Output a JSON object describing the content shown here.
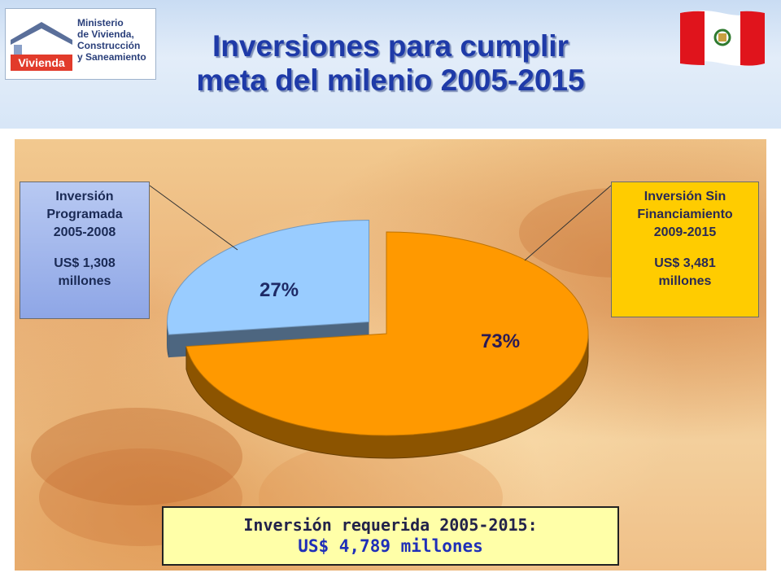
{
  "header": {
    "logo": {
      "wordmark": "Vivienda",
      "lines": [
        "Ministerio",
        "de Vivienda,",
        "Construcción",
        "y Saneamiento"
      ]
    },
    "title_lines": [
      "Inversiones para cumplir",
      "meta del milenio 2005-2015"
    ],
    "flag_icon": "peru-flag-icon"
  },
  "colors": {
    "title": "#1e3aa8",
    "slice_programada": "#99ccff",
    "slice_sin_financiamiento": "#ff9900",
    "callout_left": "#8ea6e6",
    "callout_right": "#ffcc00",
    "total_box": "#ffffa8"
  },
  "callouts": {
    "left": [
      "Inversión",
      "Programada",
      "2005-2008",
      "",
      "US$ 1,308",
      "millones"
    ],
    "right": [
      "Inversión Sin",
      "Financiamiento",
      "2009-2015",
      "",
      "US$ 3,481",
      "millones"
    ]
  },
  "chart_data": {
    "type": "pie",
    "title": "",
    "slices": [
      {
        "label": "Inversión Programada 2005-2008",
        "value": 27,
        "amount_musd": 1308,
        "value_label": "27%",
        "exploded": true,
        "color": "#99ccff"
      },
      {
        "label": "Inversión Sin Financiamiento 2009-2015",
        "value": 73,
        "amount_musd": 3481,
        "value_label": "73%",
        "exploded": false,
        "color": "#ff9900"
      }
    ]
  },
  "total": {
    "line1": "Inversión requerida 2005-2015:",
    "line2": "US$ 4,789 millones"
  }
}
